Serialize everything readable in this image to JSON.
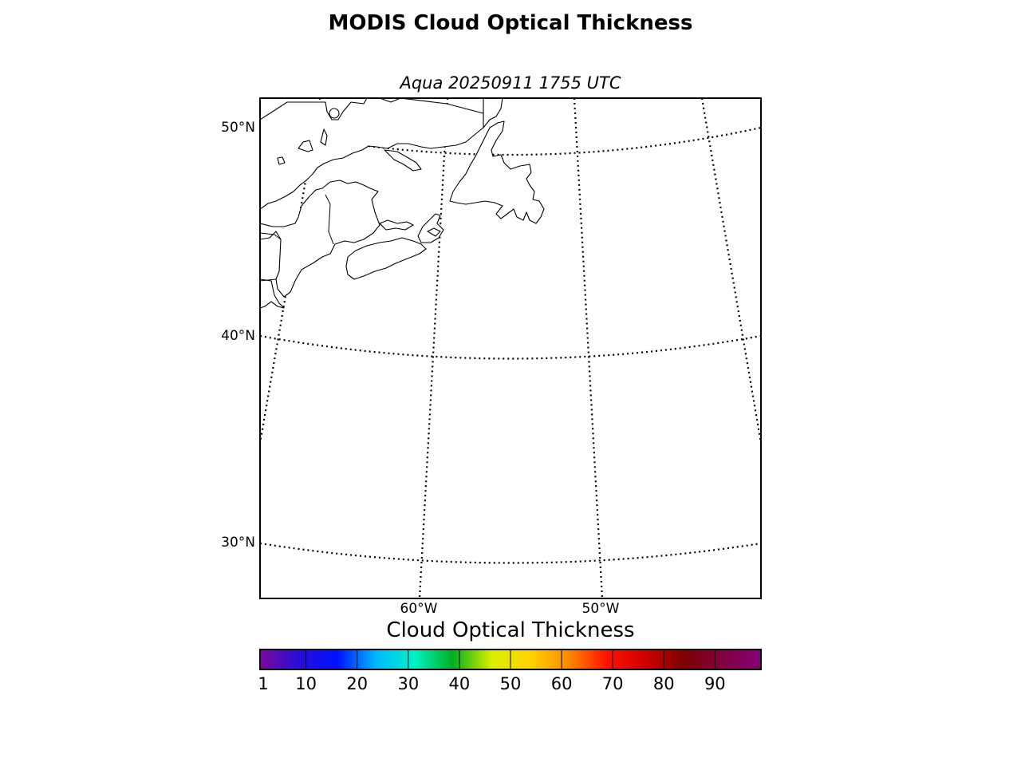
{
  "title": "MODIS Cloud Optical Thickness",
  "subtitle": "Aqua 20250911 1755 UTC",
  "map": {
    "lat_labels": [
      "50°N",
      "40°N",
      "30°N"
    ],
    "lon_labels": [
      "60°W",
      "50°W"
    ],
    "graticule_style": "dotted",
    "coastline_color": "#000000",
    "land_fill": "#ffffff"
  },
  "colorbar": {
    "title": "Cloud Optical Thickness",
    "tick_labels": [
      "1",
      "10",
      "20",
      "30",
      "40",
      "50",
      "60",
      "70",
      "80",
      "90"
    ],
    "range": [
      1,
      99
    ],
    "colors": [
      "#7b0a9a",
      "#2a0cd8",
      "#0011ff",
      "#00b7ff",
      "#00f2c8",
      "#00b020",
      "#d8ee00",
      "#ffd500",
      "#ff8a00",
      "#ff1200",
      "#d00000",
      "#7d0000",
      "#820040",
      "#860078"
    ]
  }
}
